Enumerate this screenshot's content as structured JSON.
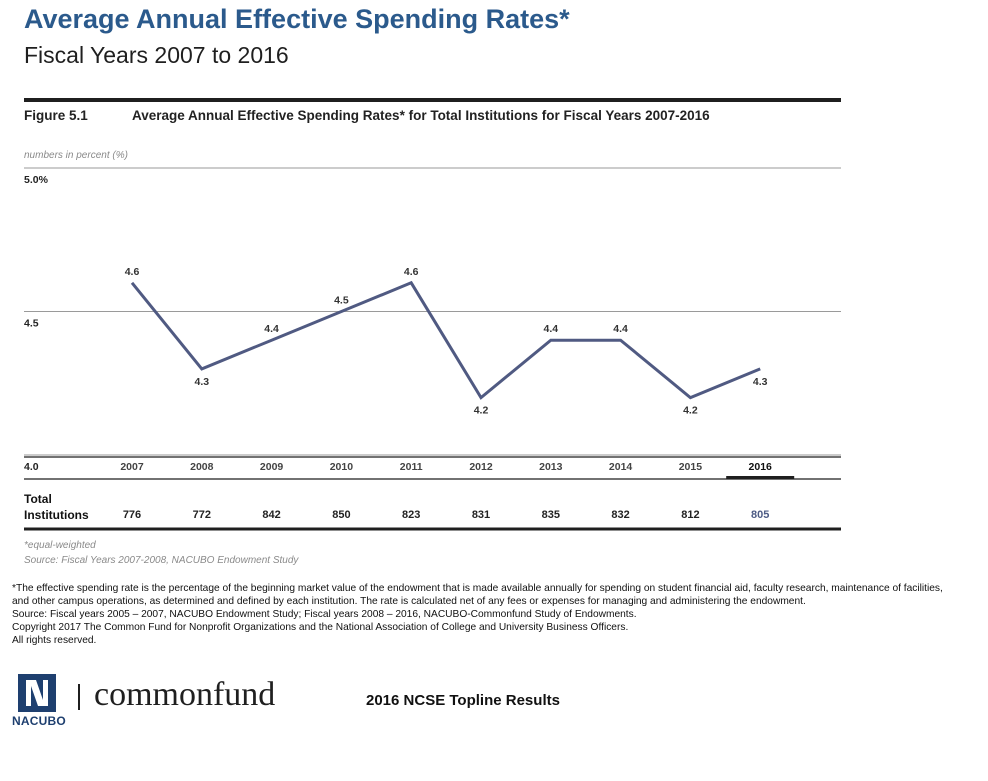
{
  "header": {
    "title": "Average Annual Effective Spending Rates*",
    "subtitle": "Fiscal Years 2007 to 2016"
  },
  "figure": {
    "label": "Figure 5.1",
    "title": "Average Annual Effective Spending Rates* for Total Institutions for Fiscal Years 2007-2016",
    "units_note": "numbers in percent (%)"
  },
  "chart_data": {
    "type": "line",
    "categories": [
      "2007",
      "2008",
      "2009",
      "2010",
      "2011",
      "2012",
      "2013",
      "2014",
      "2015",
      "2016"
    ],
    "series": [
      {
        "values": [
          4.6,
          4.3,
          4.4,
          4.5,
          4.6,
          4.2,
          4.4,
          4.4,
          4.2,
          4.3
        ]
      }
    ],
    "data_labels": [
      "4.6",
      "4.3",
      "4.4",
      "4.5",
      "4.6",
      "4.2",
      "4.4",
      "4.4",
      "4.2",
      "4.3"
    ],
    "y_ticks": [
      {
        "value": 5.0,
        "label": "5.0%"
      },
      {
        "value": 4.5,
        "label": "4.5"
      },
      {
        "value": 4.0,
        "label": "4.0"
      }
    ],
    "ylim": [
      4.0,
      5.0
    ],
    "grid": true,
    "highlight_category": "2016",
    "line_color": "#505a82",
    "table": {
      "row_label_line1": "Total",
      "row_label_line2": "Institutions",
      "values": [
        "776",
        "772",
        "842",
        "850",
        "823",
        "831",
        "835",
        "832",
        "812",
        "805"
      ],
      "highlight_color": "#4d5b85"
    }
  },
  "chart_notes": {
    "equal_weighted": "*equal-weighted",
    "source": "Source: Fiscal Years 2007-2008, NACUBO Endowment Study"
  },
  "footnotes": [
    "*The effective spending rate is the percentage of the beginning market value of the endowment that is made available annually for spending on student financial aid, faculty research, maintenance of facilities, and other campus operations, as determined and defined by each institution. The rate is calculated net of any fees or expenses for managing and administering the endowment.",
    "Source: Fiscal years 2005 – 2007, NACUBO Endowment Study; Fiscal years 2008 – 2016, NACUBO-Commonfund Study of Endowments.",
    "Copyright 2017 The Common Fund for Nonprofit Organizations and the National Association of College and University Business Officers.",
    "All rights reserved."
  ],
  "footer": {
    "logo_text": "NACUBO",
    "brand": "commonfund",
    "report": "2016 NCSE Topline Results"
  },
  "colors": {
    "title": "#2b5a8c",
    "rule": "#1f1f1f",
    "muted": "#8a8a8a",
    "logo": "#1e3f6f"
  }
}
